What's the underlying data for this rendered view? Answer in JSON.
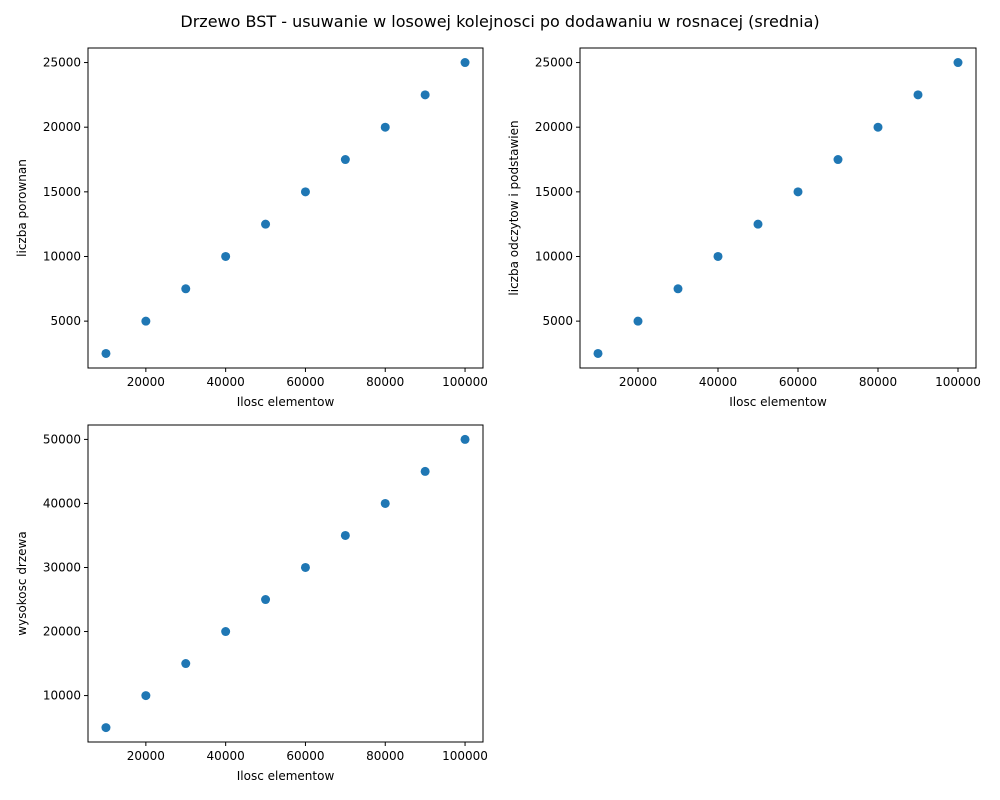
{
  "suptitle": "Drzewo BST - usuwanie w losowej kolejnosci po dodawaniu w rosnacej (srednia)",
  "colors": {
    "marker": "#1f77b4",
    "axes": "#000000"
  },
  "chart_data": [
    {
      "type": "scatter",
      "xlabel": "Ilosc elementow",
      "ylabel": "liczba porownan",
      "x": [
        10000,
        20000,
        30000,
        40000,
        50000,
        60000,
        70000,
        80000,
        90000,
        100000
      ],
      "y": [
        2500,
        5000,
        7500,
        10000,
        12500,
        15000,
        17500,
        20000,
        22500,
        25000
      ],
      "xlim": [
        5500,
        104500
      ],
      "ylim": [
        1375,
        26125
      ],
      "xticks": [
        20000,
        40000,
        60000,
        80000,
        100000
      ],
      "yticks": [
        5000,
        10000,
        15000,
        20000,
        25000
      ],
      "grid": false
    },
    {
      "type": "scatter",
      "xlabel": "Ilosc elementow",
      "ylabel": "liczba odczytow i podstawien",
      "x": [
        10000,
        20000,
        30000,
        40000,
        50000,
        60000,
        70000,
        80000,
        90000,
        100000
      ],
      "y": [
        2500,
        5000,
        7500,
        10000,
        12500,
        15000,
        17500,
        20000,
        22500,
        25000
      ],
      "xlim": [
        5500,
        104500
      ],
      "ylim": [
        1375,
        26125
      ],
      "xticks": [
        20000,
        40000,
        60000,
        80000,
        100000
      ],
      "yticks": [
        5000,
        10000,
        15000,
        20000,
        25000
      ],
      "grid": false
    },
    {
      "type": "scatter",
      "xlabel": "Ilosc elementow",
      "ylabel": "wysokosc drzewa",
      "x": [
        10000,
        20000,
        30000,
        40000,
        50000,
        60000,
        70000,
        80000,
        90000,
        100000
      ],
      "y": [
        5000,
        10000,
        15000,
        20000,
        25000,
        30000,
        35000,
        40000,
        45000,
        50000
      ],
      "xlim": [
        5500,
        104500
      ],
      "ylim": [
        2750,
        52250
      ],
      "xticks": [
        20000,
        40000,
        60000,
        80000,
        100000
      ],
      "yticks": [
        10000,
        20000,
        30000,
        40000,
        50000
      ],
      "grid": false
    }
  ]
}
